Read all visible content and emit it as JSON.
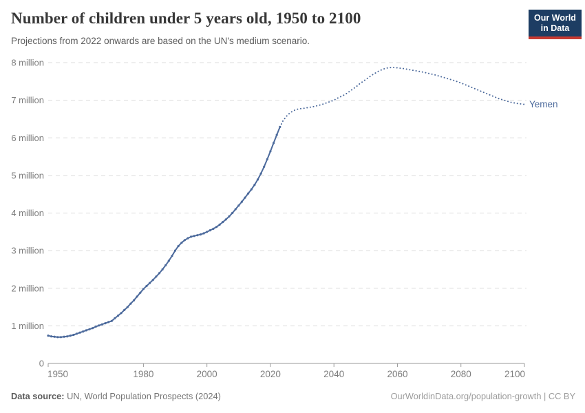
{
  "header": {
    "title": "Number of children under 5 years old, 1950 to 2100",
    "subtitle": "Projections from 2022 onwards are based on the UN's medium scenario."
  },
  "logo": {
    "line1": "Our World",
    "line2": "in Data"
  },
  "footer": {
    "source_label": "Data source:",
    "source_text": " UN, World Population Prospects (2024)",
    "link_text": "OurWorldinData.org/population-growth | CC BY"
  },
  "colors": {
    "line": "#4c6a9c",
    "entity_label": "#4c6a9c",
    "grid": "#dcdcdc",
    "axis": "#9a9a9a",
    "tick_label": "#7d7d7d",
    "logo_bg": "#1d3d63",
    "logo_red": "#c73a32"
  },
  "chart_data": {
    "type": "line",
    "title": "Number of children under 5 years old, 1950 to 2100",
    "subtitle": "Projections from 2022 onwards are based on the UN's medium scenario.",
    "entity": "Yemen",
    "unit": "million",
    "xlabel": "",
    "ylabel": "",
    "grid": "dashed-horizontal",
    "legend_position": "end-of-line",
    "xlim": [
      1950,
      2100
    ],
    "ylim": [
      0,
      8
    ],
    "xticks": [
      1950,
      1980,
      2000,
      2020,
      2040,
      2060,
      2080,
      2100
    ],
    "yticks": [
      {
        "value": 0,
        "label": "0"
      },
      {
        "value": 1,
        "label": "1 million"
      },
      {
        "value": 2,
        "label": "2 million"
      },
      {
        "value": 3,
        "label": "3 million"
      },
      {
        "value": 4,
        "label": "4 million"
      },
      {
        "value": 5,
        "label": "5 million"
      },
      {
        "value": 6,
        "label": "6 million"
      },
      {
        "value": 7,
        "label": "7 million"
      },
      {
        "value": 8,
        "label": "8 million"
      }
    ],
    "series": [
      {
        "name": "Yemen (estimates)",
        "style": "solid",
        "markers": true,
        "points": [
          [
            1950,
            0.74
          ],
          [
            1951,
            0.72
          ],
          [
            1952,
            0.71
          ],
          [
            1953,
            0.7
          ],
          [
            1954,
            0.7
          ],
          [
            1955,
            0.71
          ],
          [
            1956,
            0.72
          ],
          [
            1957,
            0.74
          ],
          [
            1958,
            0.76
          ],
          [
            1959,
            0.79
          ],
          [
            1960,
            0.82
          ],
          [
            1961,
            0.85
          ],
          [
            1962,
            0.88
          ],
          [
            1963,
            0.91
          ],
          [
            1964,
            0.94
          ],
          [
            1965,
            0.98
          ],
          [
            1966,
            1.01
          ],
          [
            1967,
            1.04
          ],
          [
            1968,
            1.07
          ],
          [
            1969,
            1.1
          ],
          [
            1970,
            1.13
          ],
          [
            1971,
            1.2
          ],
          [
            1972,
            1.27
          ],
          [
            1973,
            1.34
          ],
          [
            1974,
            1.42
          ],
          [
            1975,
            1.5
          ],
          [
            1976,
            1.59
          ],
          [
            1977,
            1.68
          ],
          [
            1978,
            1.78
          ],
          [
            1979,
            1.88
          ],
          [
            1980,
            1.98
          ],
          [
            1981,
            2.06
          ],
          [
            1982,
            2.14
          ],
          [
            1983,
            2.22
          ],
          [
            1984,
            2.31
          ],
          [
            1985,
            2.4
          ],
          [
            1986,
            2.5
          ],
          [
            1987,
            2.61
          ],
          [
            1988,
            2.73
          ],
          [
            1989,
            2.86
          ],
          [
            1990,
            3.0
          ],
          [
            1991,
            3.12
          ],
          [
            1992,
            3.21
          ],
          [
            1993,
            3.28
          ],
          [
            1994,
            3.33
          ],
          [
            1995,
            3.37
          ],
          [
            1996,
            3.39
          ],
          [
            1997,
            3.41
          ],
          [
            1998,
            3.43
          ],
          [
            1999,
            3.46
          ],
          [
            2000,
            3.5
          ],
          [
            2001,
            3.54
          ],
          [
            2002,
            3.58
          ],
          [
            2003,
            3.63
          ],
          [
            2004,
            3.69
          ],
          [
            2005,
            3.76
          ],
          [
            2006,
            3.83
          ],
          [
            2007,
            3.91
          ],
          [
            2008,
            4.0
          ],
          [
            2009,
            4.1
          ],
          [
            2010,
            4.2
          ],
          [
            2011,
            4.3
          ],
          [
            2012,
            4.41
          ],
          [
            2013,
            4.52
          ],
          [
            2014,
            4.63
          ],
          [
            2015,
            4.75
          ],
          [
            2016,
            4.89
          ],
          [
            2017,
            5.05
          ],
          [
            2018,
            5.23
          ],
          [
            2019,
            5.43
          ],
          [
            2020,
            5.64
          ],
          [
            2021,
            5.86
          ],
          [
            2022,
            6.08
          ],
          [
            2023,
            6.29
          ]
        ]
      },
      {
        "name": "Yemen (projection)",
        "style": "dotted",
        "markers": false,
        "points": [
          [
            2023,
            6.29
          ],
          [
            2024,
            6.46
          ],
          [
            2025,
            6.57
          ],
          [
            2026,
            6.65
          ],
          [
            2027,
            6.71
          ],
          [
            2028,
            6.75
          ],
          [
            2029,
            6.77
          ],
          [
            2030,
            6.78
          ],
          [
            2031,
            6.79
          ],
          [
            2032,
            6.81
          ],
          [
            2033,
            6.82
          ],
          [
            2034,
            6.84
          ],
          [
            2035,
            6.86
          ],
          [
            2036,
            6.88
          ],
          [
            2037,
            6.91
          ],
          [
            2038,
            6.94
          ],
          [
            2039,
            6.97
          ],
          [
            2040,
            7.0
          ],
          [
            2041,
            7.05
          ],
          [
            2042,
            7.09
          ],
          [
            2043,
            7.13
          ],
          [
            2044,
            7.18
          ],
          [
            2045,
            7.24
          ],
          [
            2046,
            7.3
          ],
          [
            2047,
            7.36
          ],
          [
            2048,
            7.43
          ],
          [
            2049,
            7.49
          ],
          [
            2050,
            7.55
          ],
          [
            2051,
            7.61
          ],
          [
            2052,
            7.67
          ],
          [
            2053,
            7.72
          ],
          [
            2054,
            7.77
          ],
          [
            2055,
            7.81
          ],
          [
            2056,
            7.84
          ],
          [
            2057,
            7.86
          ],
          [
            2058,
            7.87
          ],
          [
            2059,
            7.87
          ],
          [
            2060,
            7.86
          ],
          [
            2062,
            7.84
          ],
          [
            2064,
            7.81
          ],
          [
            2066,
            7.78
          ],
          [
            2068,
            7.75
          ],
          [
            2070,
            7.71
          ],
          [
            2072,
            7.67
          ],
          [
            2074,
            7.62
          ],
          [
            2076,
            7.57
          ],
          [
            2078,
            7.52
          ],
          [
            2080,
            7.46
          ],
          [
            2082,
            7.39
          ],
          [
            2084,
            7.32
          ],
          [
            2086,
            7.25
          ],
          [
            2088,
            7.18
          ],
          [
            2090,
            7.11
          ],
          [
            2092,
            7.04
          ],
          [
            2094,
            6.99
          ],
          [
            2096,
            6.94
          ],
          [
            2098,
            6.91
          ],
          [
            2100,
            6.89
          ]
        ]
      }
    ]
  }
}
